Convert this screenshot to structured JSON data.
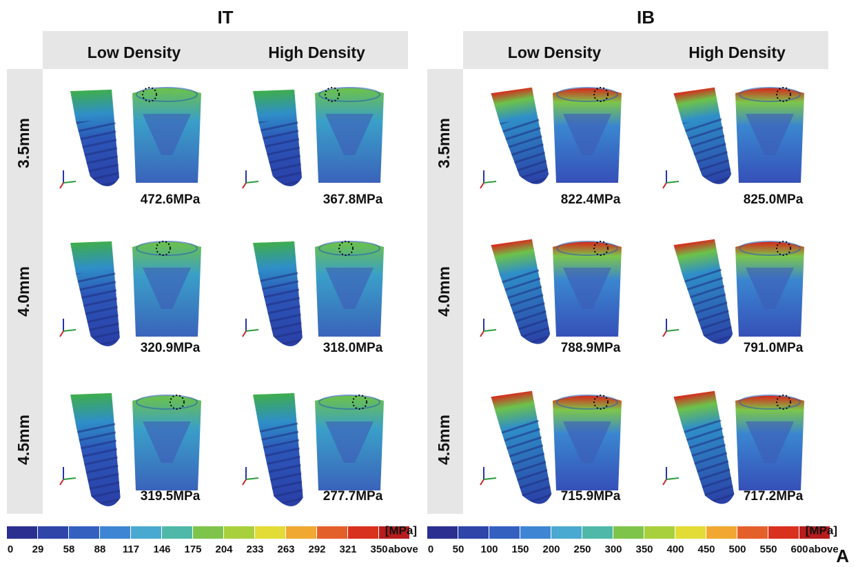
{
  "panels": [
    {
      "title": "IT",
      "columns": [
        "Low Density",
        "High Density"
      ],
      "rows": [
        {
          "label": "3.5mm",
          "values": [
            "472.6MPa",
            "367.8MPa"
          ]
        },
        {
          "label": "4.0mm",
          "values": [
            "320.9MPa",
            "318.0MPa"
          ]
        },
        {
          "label": "4.5mm",
          "values": [
            "319.5MPa",
            "277.7MPa"
          ]
        }
      ],
      "colorbar": {
        "unit": "[MPa]",
        "ticks": [
          "0",
          "29",
          "58",
          "88",
          "117",
          "146",
          "175",
          "204",
          "233",
          "263",
          "292",
          "321",
          "350",
          "above"
        ]
      }
    },
    {
      "title": "IB",
      "columns": [
        "Low Density",
        "High Density"
      ],
      "rows": [
        {
          "label": "3.5mm",
          "values": [
            "822.4MPa",
            "825.0MPa"
          ]
        },
        {
          "label": "4.0mm",
          "values": [
            "788.9MPa",
            "791.0MPa"
          ]
        },
        {
          "label": "4.5mm",
          "values": [
            "715.9MPa",
            "717.2MPa"
          ]
        }
      ],
      "colorbar": {
        "unit": "[MPa]",
        "ticks": [
          "0",
          "50",
          "100",
          "150",
          "200",
          "250",
          "300",
          "350",
          "400",
          "450",
          "500",
          "550",
          "600",
          "above"
        ]
      }
    }
  ],
  "figure_label": "A"
}
